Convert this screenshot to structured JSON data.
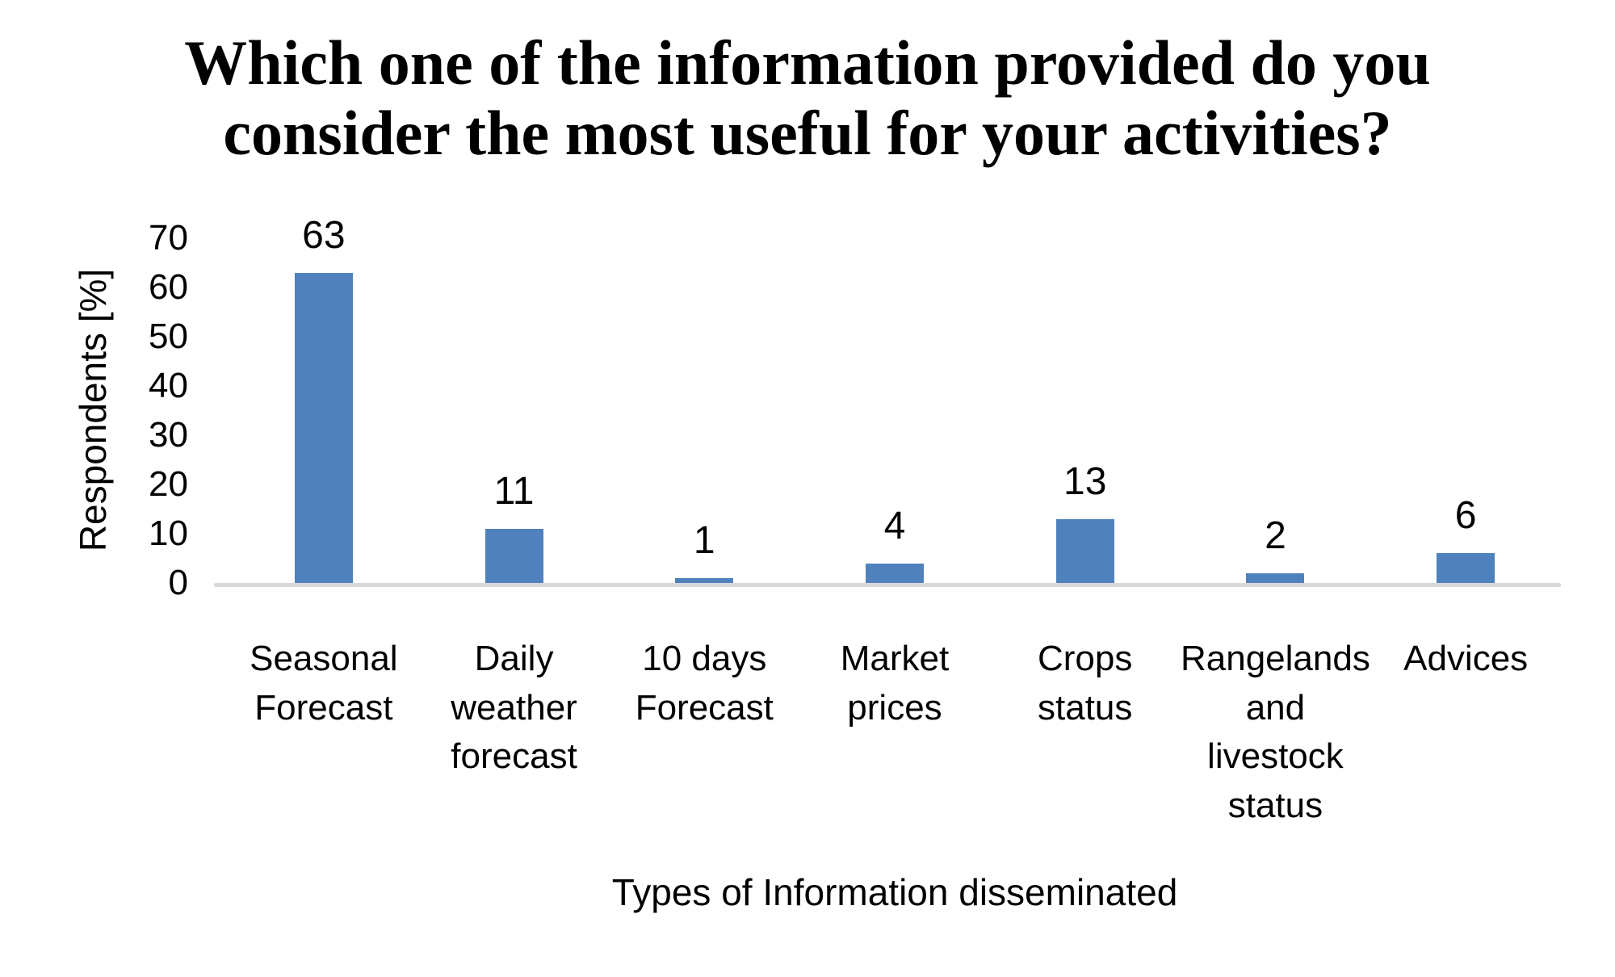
{
  "title": {
    "lines": [
      "Which one of the information provided do you",
      "consider the most useful for your activities?"
    ]
  },
  "chart_data": {
    "type": "bar",
    "title": "Which one of the information provided do you consider the most useful for your activities?",
    "categories": [
      "Seasonal Forecast",
      "Daily weather forecast",
      "10 days Forecast",
      "Market prices",
      "Crops status",
      "Rangelands and livestock status",
      "Advices"
    ],
    "values": [
      63,
      11,
      1,
      4,
      13,
      2,
      6
    ],
    "data_labels": [
      63,
      11,
      1,
      4,
      13,
      2,
      6
    ],
    "xlabel": "Types of Information disseminated",
    "ylabel": "Respondents [%]",
    "ylim": [
      0,
      70
    ],
    "yticks": [
      0,
      10,
      20,
      30,
      40,
      50,
      60,
      70
    ],
    "grid": false,
    "legend": false,
    "bar_color": "#4F81BD",
    "axis_line_color": "#D9D9D9",
    "text_color": "#000000"
  }
}
